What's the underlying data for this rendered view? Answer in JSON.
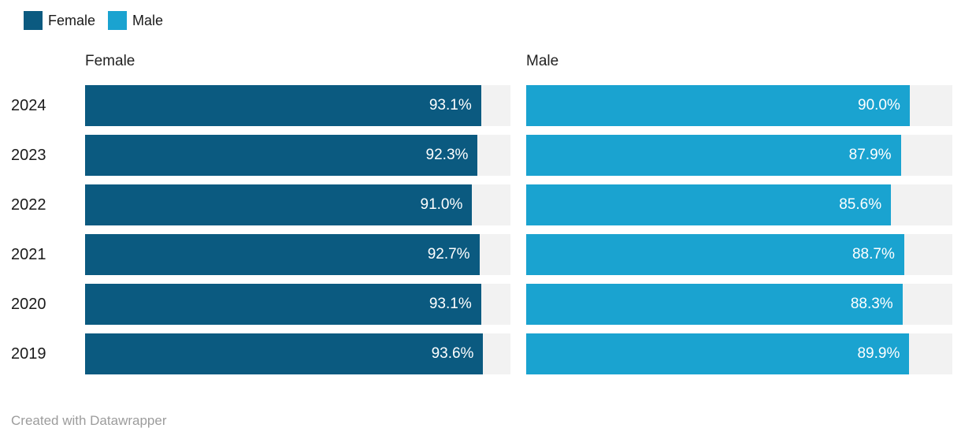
{
  "legend": {
    "items": [
      {
        "label": "Female",
        "color": "#0b5a80"
      },
      {
        "label": "Male",
        "color": "#1aa3d0"
      }
    ]
  },
  "panels": {
    "female_header": "Female",
    "male_header": "Male"
  },
  "rows": [
    {
      "year": "2024",
      "female": {
        "value": 93.1,
        "label": "93.1%"
      },
      "male": {
        "value": 90.0,
        "label": "90.0%"
      }
    },
    {
      "year": "2023",
      "female": {
        "value": 92.3,
        "label": "92.3%"
      },
      "male": {
        "value": 87.9,
        "label": "87.9%"
      }
    },
    {
      "year": "2022",
      "female": {
        "value": 91.0,
        "label": "91.0%"
      },
      "male": {
        "value": 85.6,
        "label": "85.6%"
      }
    },
    {
      "year": "2021",
      "female": {
        "value": 92.7,
        "label": "92.7%"
      },
      "male": {
        "value": 88.7,
        "label": "88.7%"
      }
    },
    {
      "year": "2020",
      "female": {
        "value": 93.1,
        "label": "93.1%"
      },
      "male": {
        "value": 88.3,
        "label": "88.3%"
      }
    },
    {
      "year": "2019",
      "female": {
        "value": 93.6,
        "label": "93.6%"
      },
      "male": {
        "value": 89.9,
        "label": "89.9%"
      }
    }
  ],
  "chart_data": {
    "type": "bar",
    "orientation": "horizontal",
    "categories": [
      "2024",
      "2023",
      "2022",
      "2021",
      "2020",
      "2019"
    ],
    "series": [
      {
        "name": "Female",
        "color": "#0b5a80",
        "values": [
          93.1,
          92.3,
          91.0,
          92.7,
          93.1,
          93.6
        ]
      },
      {
        "name": "Male",
        "color": "#1aa3d0",
        "values": [
          90.0,
          87.9,
          85.6,
          88.7,
          88.3,
          89.9
        ]
      }
    ],
    "value_suffix": "%",
    "xlim": [
      0,
      100
    ],
    "grid": false,
    "legend_position": "top",
    "panel_headers": [
      "Female",
      "Male"
    ],
    "track_color": "#f2f2f2"
  },
  "footer": {
    "attribution": "Created with Datawrapper"
  }
}
